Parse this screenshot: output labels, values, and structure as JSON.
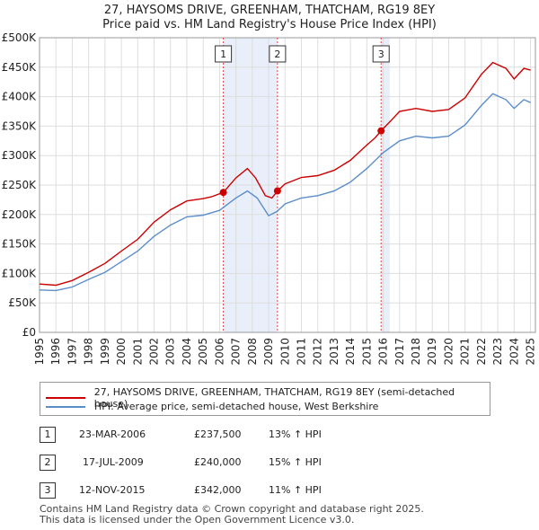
{
  "chart_data": {
    "type": "line",
    "title": "27, HAYSOMS DRIVE, GREENHAM, THATCHAM, RG19 8EY",
    "subtitle": "Price paid vs. HM Land Registry's House Price Index (HPI)",
    "xlim": [
      1995,
      2025.3
    ],
    "ylim": [
      0,
      500000
    ],
    "x_ticks": [
      "1995",
      "1996",
      "1997",
      "1998",
      "1999",
      "2000",
      "2001",
      "2002",
      "2003",
      "2004",
      "2005",
      "2006",
      "2007",
      "2008",
      "2009",
      "2010",
      "2011",
      "2012",
      "2013",
      "2014",
      "2015",
      "2016",
      "2017",
      "2018",
      "2019",
      "2020",
      "2021",
      "2022",
      "2023",
      "2024",
      "2025"
    ],
    "y_ticks": [
      {
        "value": 0,
        "label": "£0"
      },
      {
        "value": 50000,
        "label": "£50K"
      },
      {
        "value": 100000,
        "label": "£100K"
      },
      {
        "value": 150000,
        "label": "£150K"
      },
      {
        "value": 200000,
        "label": "£200K"
      },
      {
        "value": 250000,
        "label": "£250K"
      },
      {
        "value": 300000,
        "label": "£300K"
      },
      {
        "value": 350000,
        "label": "£350K"
      },
      {
        "value": 400000,
        "label": "£400K"
      },
      {
        "value": 450000,
        "label": "£450K"
      },
      {
        "value": 500000,
        "label": "£500K"
      }
    ],
    "series": [
      {
        "name": "27, HAYSOMS DRIVE, GREENHAM, THATCHAM, RG19 8EY (semi-detached house)",
        "color": "#cc0000",
        "points": [
          [
            1995.0,
            82000
          ],
          [
            1996.0,
            80000
          ],
          [
            1997.0,
            88000
          ],
          [
            1998.0,
            102000
          ],
          [
            1999.0,
            117000
          ],
          [
            2000.0,
            138000
          ],
          [
            2001.0,
            158000
          ],
          [
            2002.0,
            187000
          ],
          [
            2003.0,
            208000
          ],
          [
            2004.0,
            223000
          ],
          [
            2005.0,
            227000
          ],
          [
            2005.5,
            230000
          ],
          [
            2006.23,
            237500
          ],
          [
            2007.0,
            262000
          ],
          [
            2007.7,
            278000
          ],
          [
            2008.2,
            262000
          ],
          [
            2008.8,
            232000
          ],
          [
            2009.2,
            228000
          ],
          [
            2009.54,
            240000
          ],
          [
            2010.0,
            252000
          ],
          [
            2011.0,
            263000
          ],
          [
            2012.0,
            266000
          ],
          [
            2013.0,
            275000
          ],
          [
            2014.0,
            292000
          ],
          [
            2015.0,
            318000
          ],
          [
            2015.5,
            330000
          ],
          [
            2015.87,
            342000
          ],
          [
            2016.5,
            360000
          ],
          [
            2017.0,
            375000
          ],
          [
            2018.0,
            380000
          ],
          [
            2019.0,
            375000
          ],
          [
            2020.0,
            378000
          ],
          [
            2021.0,
            398000
          ],
          [
            2022.0,
            438000
          ],
          [
            2022.7,
            458000
          ],
          [
            2023.5,
            448000
          ],
          [
            2024.0,
            430000
          ],
          [
            2024.6,
            448000
          ],
          [
            2025.0,
            445000
          ]
        ]
      },
      {
        "name": "HPI: Average price, semi-detached house, West Berkshire",
        "color": "#5b8ec9",
        "points": [
          [
            1995.0,
            72000
          ],
          [
            1996.0,
            71000
          ],
          [
            1997.0,
            77000
          ],
          [
            1998.0,
            90000
          ],
          [
            1999.0,
            102000
          ],
          [
            2000.0,
            120000
          ],
          [
            2001.0,
            138000
          ],
          [
            2002.0,
            163000
          ],
          [
            2003.0,
            182000
          ],
          [
            2004.0,
            196000
          ],
          [
            2005.0,
            199000
          ],
          [
            2006.0,
            207000
          ],
          [
            2007.0,
            228000
          ],
          [
            2007.7,
            240000
          ],
          [
            2008.3,
            228000
          ],
          [
            2009.0,
            198000
          ],
          [
            2009.5,
            205000
          ],
          [
            2010.0,
            218000
          ],
          [
            2011.0,
            228000
          ],
          [
            2012.0,
            232000
          ],
          [
            2013.0,
            240000
          ],
          [
            2014.0,
            255000
          ],
          [
            2015.0,
            278000
          ],
          [
            2016.0,
            305000
          ],
          [
            2017.0,
            325000
          ],
          [
            2018.0,
            333000
          ],
          [
            2019.0,
            330000
          ],
          [
            2020.0,
            333000
          ],
          [
            2021.0,
            352000
          ],
          [
            2022.0,
            385000
          ],
          [
            2022.7,
            405000
          ],
          [
            2023.5,
            395000
          ],
          [
            2024.0,
            380000
          ],
          [
            2024.6,
            395000
          ],
          [
            2025.0,
            390000
          ]
        ]
      }
    ],
    "sales": [
      {
        "n": "1",
        "x": 2006.23,
        "y": 237500
      },
      {
        "n": "2",
        "x": 2009.54,
        "y": 240000
      },
      {
        "n": "3",
        "x": 2015.87,
        "y": 342000
      }
    ],
    "shaded_spans": [
      [
        2006.23,
        2009.54
      ],
      [
        2015.87,
        2016.4
      ]
    ]
  },
  "legend": {
    "property": "27, HAYSOMS DRIVE, GREENHAM, THATCHAM, RG19 8EY (semi-detached house)",
    "hpi": "HPI: Average price, semi-detached house, West Berkshire"
  },
  "transactions": [
    {
      "n": "1",
      "date": "23-MAR-2006",
      "price": "£237,500",
      "hpi": "13% ↑ HPI"
    },
    {
      "n": "2",
      "date": "17-JUL-2009",
      "price": "£240,000",
      "hpi": "15% ↑ HPI"
    },
    {
      "n": "3",
      "date": "12-NOV-2015",
      "price": "£342,000",
      "hpi": "11% ↑ HPI"
    }
  ],
  "footer": {
    "line1": "Contains HM Land Registry data © Crown copyright and database right 2025.",
    "line2": "This data is licensed under the Open Government Licence v3.0."
  },
  "colors": {
    "property": "#cc0000",
    "hpi": "#5b8ec9",
    "shade": "#e8eefa",
    "grid": "#dddddd"
  }
}
